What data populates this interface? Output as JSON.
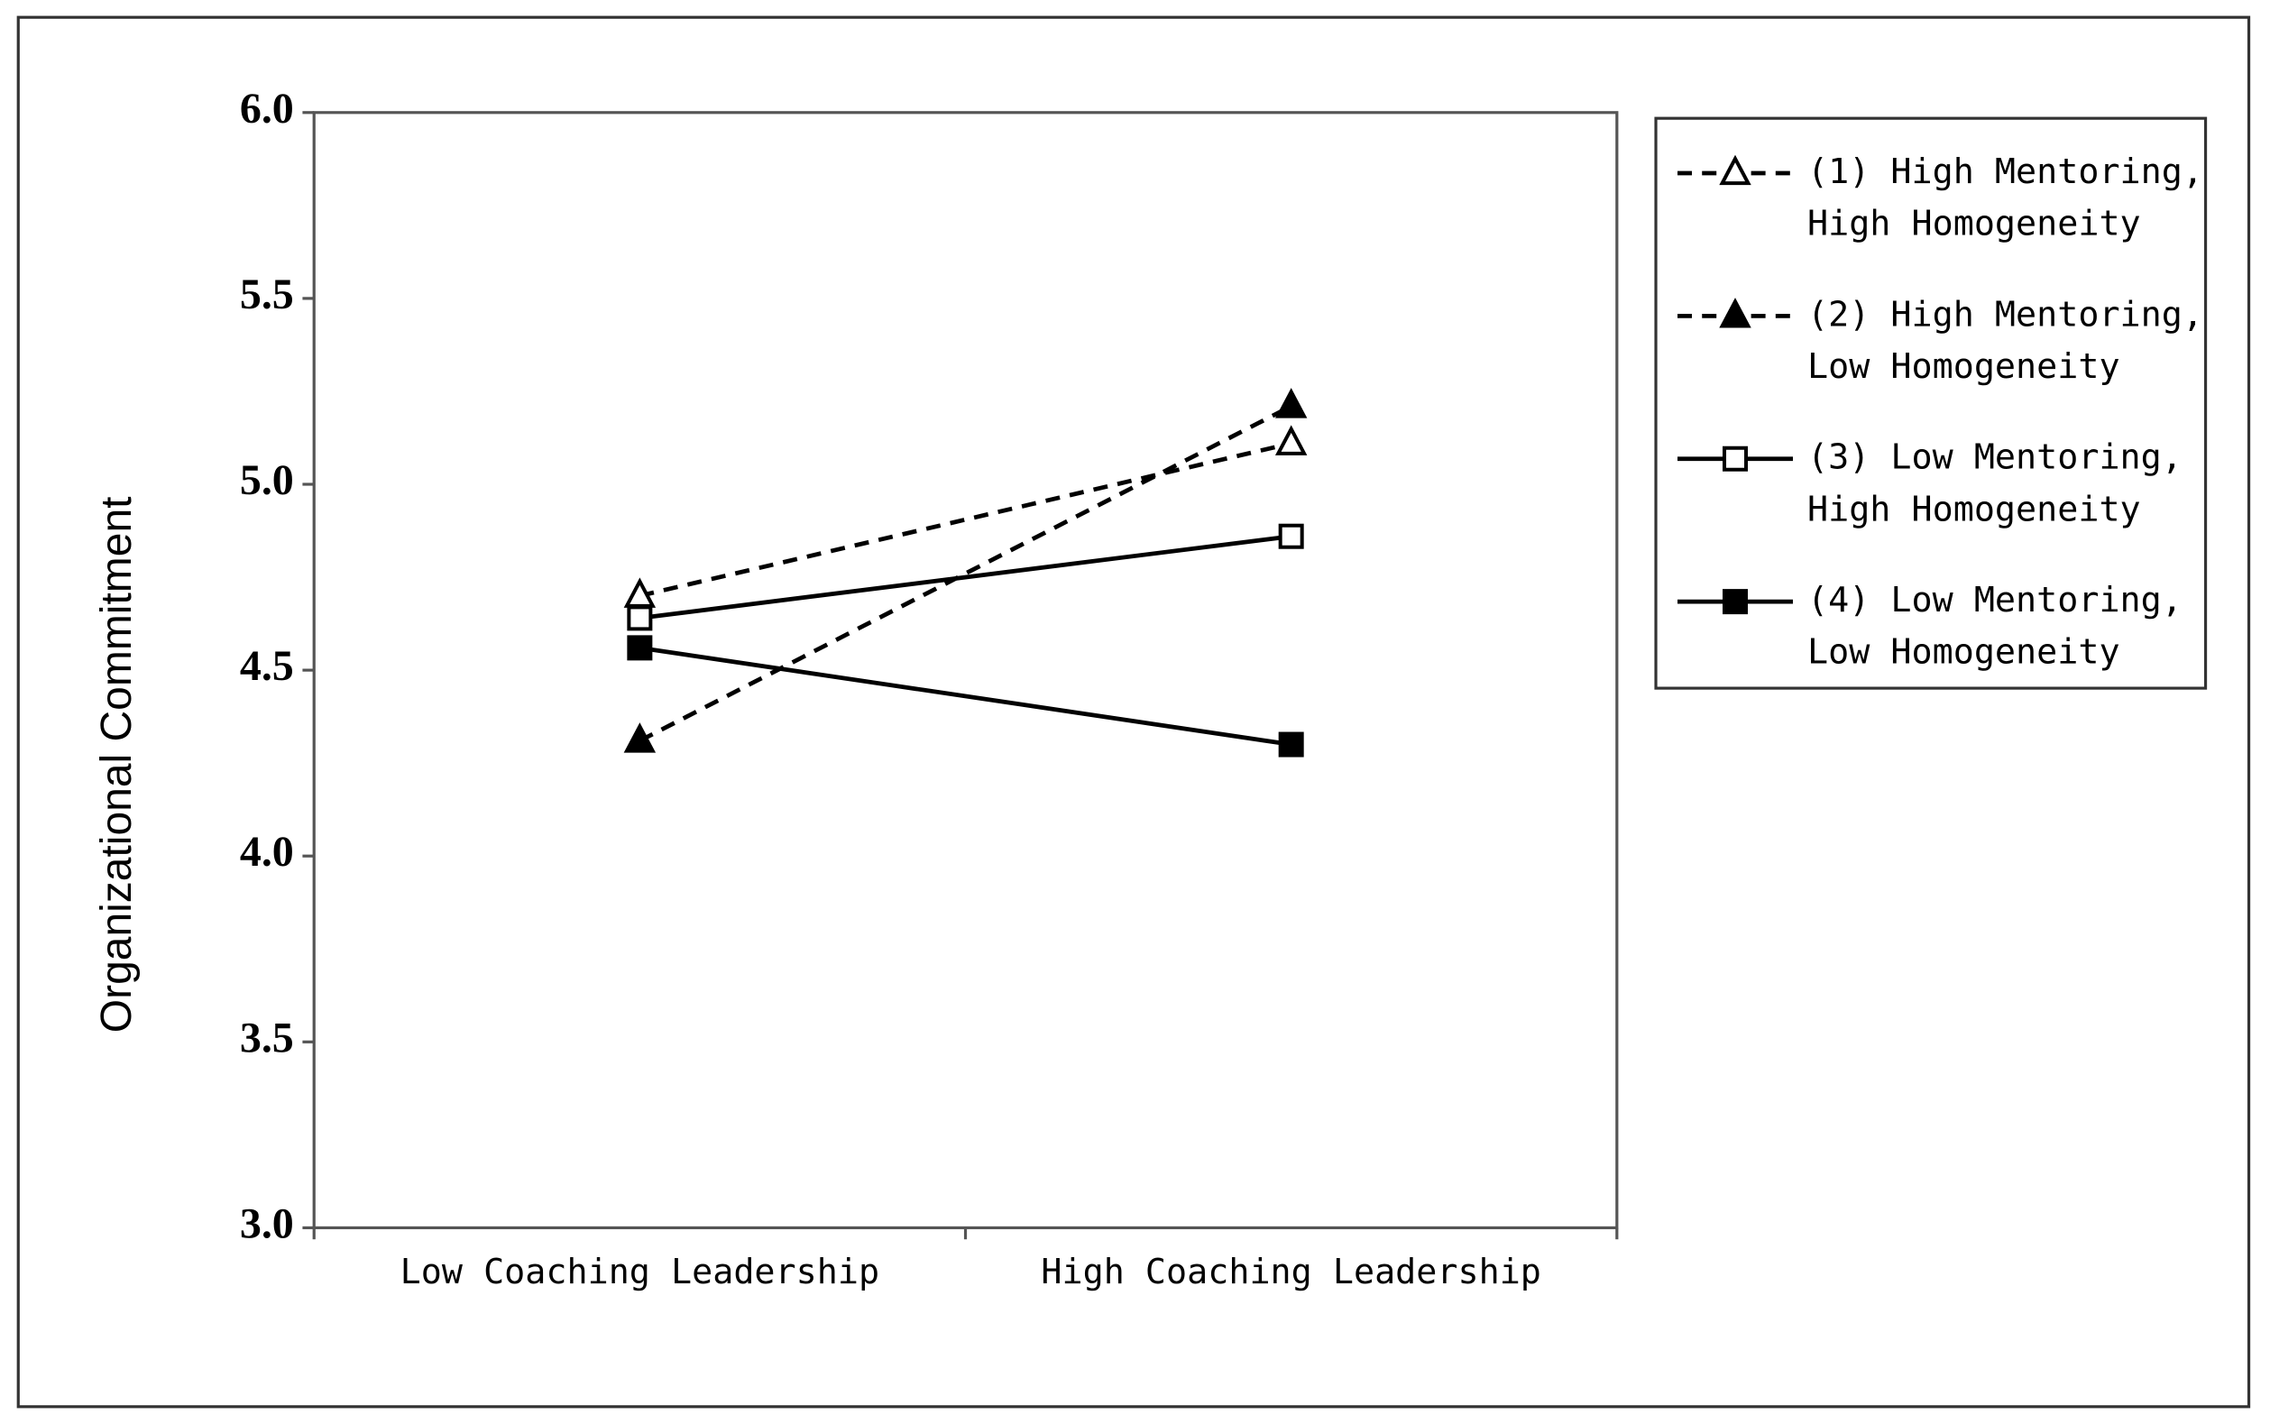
{
  "chart_data": {
    "type": "line",
    "y_label": "Organizational Commitment",
    "categories": [
      "Low Coaching Leadership",
      "High Coaching Leadership"
    ],
    "series": [
      {
        "name": "(1) High Mentoring,\nHigh Homogeneity",
        "color": "#000000",
        "line_style": "dashed",
        "marker": "triangle-open",
        "values": [
          4.7,
          5.11
        ]
      },
      {
        "name": "(2) High Mentoring,\nLow Homogeneity",
        "color": "#000000",
        "line_style": "dashed",
        "marker": "triangle-filled",
        "values": [
          4.31,
          5.21
        ]
      },
      {
        "name": "(3) Low Mentoring,\nHigh Homogeneity",
        "color": "#000000",
        "line_style": "solid",
        "marker": "square-open",
        "values": [
          4.64,
          4.86
        ]
      },
      {
        "name": "(4) Low Mentoring,\nLow Homogeneity",
        "color": "#000000",
        "line_style": "solid",
        "marker": "square-filled",
        "values": [
          4.56,
          4.3
        ]
      }
    ],
    "ylim": [
      3.0,
      6.0
    ],
    "yticks": [
      {
        "value": 3.0,
        "label": "3.0"
      },
      {
        "value": 3.5,
        "label": "3.5"
      },
      {
        "value": 4.0,
        "label": "4.0"
      },
      {
        "value": 4.5,
        "label": "4.5"
      },
      {
        "value": 5.0,
        "label": "5.0"
      },
      {
        "value": 5.5,
        "label": "5.5"
      },
      {
        "value": 6.0,
        "label": "6.0"
      }
    ],
    "grid": false,
    "legend": "right"
  }
}
